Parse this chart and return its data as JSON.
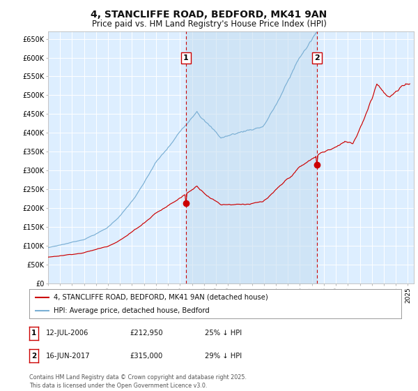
{
  "title": "4, STANCLIFFE ROAD, BEDFORD, MK41 9AN",
  "subtitle": "Price paid vs. HM Land Registry's House Price Index (HPI)",
  "title_fontsize": 10,
  "subtitle_fontsize": 8.5,
  "background_color": "#ffffff",
  "plot_bg_color": "#ddeeff",
  "plot_bg_shade": "#ccddf0",
  "grid_color": "#ffffff",
  "hpi_color": "#7aafd4",
  "price_color": "#cc0000",
  "ylim": [
    0,
    670000
  ],
  "yticks": [
    0,
    50000,
    100000,
    150000,
    200000,
    250000,
    300000,
    350000,
    400000,
    450000,
    500000,
    550000,
    600000,
    650000
  ],
  "ytick_labels": [
    "£0",
    "£50K",
    "£100K",
    "£150K",
    "£200K",
    "£250K",
    "£300K",
    "£350K",
    "£400K",
    "£450K",
    "£500K",
    "£550K",
    "£600K",
    "£650K"
  ],
  "legend_line1": "4, STANCLIFFE ROAD, BEDFORD, MK41 9AN (detached house)",
  "legend_line2": "HPI: Average price, detached house, Bedford",
  "footer": "Contains HM Land Registry data © Crown copyright and database right 2025.\nThis data is licensed under the Open Government Licence v3.0."
}
